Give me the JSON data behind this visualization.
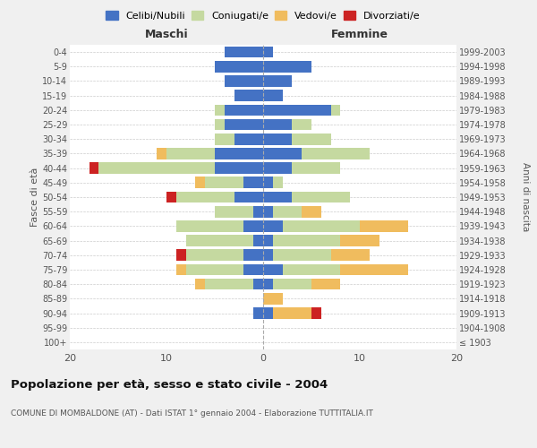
{
  "age_groups": [
    "100+",
    "95-99",
    "90-94",
    "85-89",
    "80-84",
    "75-79",
    "70-74",
    "65-69",
    "60-64",
    "55-59",
    "50-54",
    "45-49",
    "40-44",
    "35-39",
    "30-34",
    "25-29",
    "20-24",
    "15-19",
    "10-14",
    "5-9",
    "0-4"
  ],
  "birth_years": [
    "≤ 1903",
    "1904-1908",
    "1909-1913",
    "1914-1918",
    "1919-1923",
    "1924-1928",
    "1929-1933",
    "1934-1938",
    "1939-1943",
    "1944-1948",
    "1949-1953",
    "1954-1958",
    "1959-1963",
    "1964-1968",
    "1969-1973",
    "1974-1978",
    "1979-1983",
    "1984-1988",
    "1989-1993",
    "1994-1998",
    "1999-2003"
  ],
  "maschi": {
    "celibi": [
      0,
      0,
      1,
      0,
      1,
      2,
      2,
      1,
      2,
      1,
      3,
      2,
      5,
      5,
      3,
      4,
      4,
      3,
      4,
      5,
      4
    ],
    "coniugati": [
      0,
      0,
      0,
      0,
      5,
      6,
      6,
      7,
      7,
      4,
      6,
      4,
      12,
      5,
      2,
      1,
      1,
      0,
      0,
      0,
      0
    ],
    "vedovi": [
      0,
      0,
      0,
      0,
      1,
      1,
      0,
      0,
      0,
      0,
      0,
      1,
      0,
      1,
      0,
      0,
      0,
      0,
      0,
      0,
      0
    ],
    "divorziati": [
      0,
      0,
      0,
      0,
      0,
      0,
      1,
      0,
      0,
      0,
      1,
      0,
      1,
      0,
      0,
      0,
      0,
      0,
      0,
      0,
      0
    ]
  },
  "femmine": {
    "nubili": [
      0,
      0,
      1,
      0,
      1,
      2,
      1,
      1,
      2,
      1,
      3,
      1,
      3,
      4,
      3,
      3,
      7,
      2,
      3,
      5,
      1
    ],
    "coniugate": [
      0,
      0,
      0,
      0,
      4,
      6,
      6,
      7,
      8,
      3,
      6,
      1,
      5,
      7,
      4,
      2,
      1,
      0,
      0,
      0,
      0
    ],
    "vedove": [
      0,
      0,
      4,
      2,
      3,
      7,
      4,
      4,
      5,
      2,
      0,
      0,
      0,
      0,
      0,
      0,
      0,
      0,
      0,
      0,
      0
    ],
    "divorziate": [
      0,
      0,
      1,
      0,
      0,
      0,
      0,
      0,
      0,
      0,
      0,
      0,
      0,
      0,
      0,
      0,
      0,
      0,
      0,
      0,
      0
    ]
  },
  "colors": {
    "celibi_nubili": "#4472C4",
    "coniugati": "#C5D9A0",
    "vedovi": "#F0BC5E",
    "divorziati": "#CC2222"
  },
  "xlim": 20,
  "title": "Popolazione per età, sesso e stato civile - 2004",
  "subtitle": "COMUNE DI MOMBALDONE (AT) - Dati ISTAT 1° gennaio 2004 - Elaborazione TUTTITALIA.IT",
  "ylabel_left": "Fasce di età",
  "ylabel_right": "Anni di nascita",
  "xlabel_left": "Maschi",
  "xlabel_right": "Femmine",
  "bg_color": "#f0f0f0",
  "plot_bg": "#ffffff"
}
